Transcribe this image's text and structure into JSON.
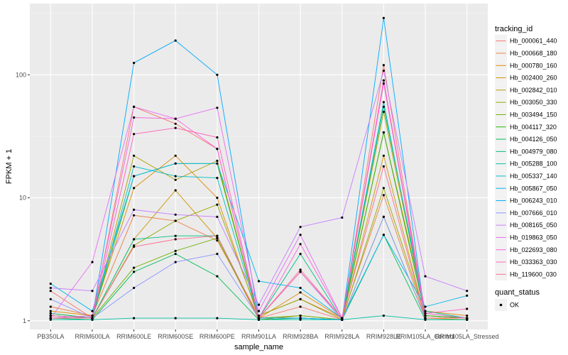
{
  "chart_data": {
    "type": "line",
    "title": "",
    "xlabel": "sample_name",
    "ylabel": "FPKM + 1",
    "y_scale": "log10",
    "ylim": [
      0.85,
      380
    ],
    "y_ticks": [
      1,
      10,
      100
    ],
    "y_tick_labels": [
      "1",
      "10",
      "100"
    ],
    "grid": true,
    "legend_position": "right",
    "categories": [
      "PB350LA",
      "RRIM600LA",
      "RRIM600LE",
      "RRIM600SE",
      "RRIM600PE",
      "RRIM901LA",
      "RRIM928BA",
      "RRIM928LA",
      "RRIM928LE",
      "RRIM105LA_Control",
      "RRIM105LA_Stressed"
    ],
    "legend_color_title": "tracking_id",
    "legend_shape_title": "quant_status",
    "legend_shape_label": "OK",
    "point_color": "#000000",
    "series": [
      {
        "name": "Hb_000061_440",
        "color": "#F8766D",
        "values": [
          1.75,
          1.05,
          55,
          40,
          25,
          1.05,
          1.3,
          1.02,
          120,
          1.1,
          1.05
        ]
      },
      {
        "name": "Hb_000668_180",
        "color": "#EE8043",
        "values": [
          1.3,
          1.1,
          7.2,
          6.5,
          4.5,
          1.1,
          1.5,
          1.05,
          10.5,
          1.05,
          1.05
        ]
      },
      {
        "name": "Hb_000780_160",
        "color": "#E18A00",
        "values": [
          1.2,
          1.1,
          12,
          22,
          10,
          1.05,
          1.7,
          1.05,
          34,
          1.2,
          1.1
        ]
      },
      {
        "name": "Hb_002400_260",
        "color": "#CD9600",
        "values": [
          1.05,
          1.05,
          4.6,
          11.5,
          4.7,
          1.02,
          1.1,
          1.02,
          22,
          1.05,
          1.02
        ]
      },
      {
        "name": "Hb_002842_010",
        "color": "#B59F00",
        "values": [
          1.15,
          1.05,
          22,
          14,
          20,
          1.05,
          1.05,
          1.02,
          50,
          1.15,
          1.05
        ]
      },
      {
        "name": "Hb_003050_330",
        "color": "#97A900",
        "values": [
          1.1,
          1.05,
          4.1,
          6.5,
          8.8,
          1.1,
          1.5,
          1.02,
          12,
          1.1,
          1.05
        ]
      },
      {
        "name": "Hb_003494_150",
        "color": "#6FB000",
        "values": [
          1.1,
          1.05,
          2.7,
          3.7,
          4.7,
          1.05,
          1.1,
          1.02,
          7,
          1.05,
          1.05
        ]
      },
      {
        "name": "Hb_004117_320",
        "color": "#24B700",
        "values": [
          1.1,
          1.05,
          15,
          19,
          19,
          1.05,
          1.05,
          1.02,
          34,
          1.1,
          1.05
        ]
      },
      {
        "name": "Hb_004126_050",
        "color": "#00BC57",
        "values": [
          1.05,
          1.02,
          2.5,
          3.5,
          2.3,
          1.02,
          1.05,
          1.02,
          5,
          1.02,
          1.02
        ]
      },
      {
        "name": "Hb_004979_080",
        "color": "#00BF82",
        "values": [
          1.15,
          1.05,
          4.6,
          4.9,
          4.9,
          1.05,
          3.5,
          1.02,
          55,
          1.2,
          1.05
        ]
      },
      {
        "name": "Hb_005288_100",
        "color": "#00C1A5",
        "values": [
          1.02,
          1.02,
          1.05,
          1.05,
          1.05,
          1.02,
          1.02,
          1.02,
          1.1,
          1.02,
          1.02
        ]
      },
      {
        "name": "Hb_005337_140",
        "color": "#00BFC4",
        "values": [
          1.05,
          1.05,
          18,
          15,
          14.5,
          1.05,
          1.05,
          1.02,
          60,
          1.05,
          1.05
        ]
      },
      {
        "name": "Hb_005867_050",
        "color": "#00B6EB",
        "values": [
          2,
          1.2,
          15,
          19,
          19,
          2.1,
          1.85,
          1.05,
          5,
          1.3,
          1.6
        ]
      },
      {
        "name": "Hb_006243_010",
        "color": "#00A9FF",
        "values": [
          1.05,
          1.05,
          125,
          190,
          100,
          1.05,
          1.05,
          1.02,
          290,
          1.05,
          1.05
        ]
      },
      {
        "name": "Hb_007666_010",
        "color": "#8B93FF",
        "values": [
          1.5,
          1.05,
          1.85,
          3,
          3.5,
          1.05,
          2.5,
          1.02,
          7,
          1.05,
          1.05
        ]
      },
      {
        "name": "Hb_008165_050",
        "color": "#C77CFF",
        "values": [
          1.85,
          1.75,
          8,
          7.3,
          7,
          1.35,
          5.8,
          6.9,
          108,
          2.3,
          1.75
        ]
      },
      {
        "name": "Hb_019863_050",
        "color": "#E76BF3",
        "values": [
          1.05,
          3,
          55,
          44,
          54,
          1.2,
          5,
          1.05,
          90,
          1.15,
          1.05
        ]
      },
      {
        "name": "Hb_022693_080",
        "color": "#FA62DB",
        "values": [
          1.05,
          1.1,
          45,
          44,
          25,
          1.05,
          4.2,
          1.05,
          90,
          1.05,
          1.05
        ]
      },
      {
        "name": "Hb_033363_030",
        "color": "#FF62BC",
        "values": [
          1.1,
          1.05,
          33,
          37,
          31,
          1.05,
          2.5,
          1.05,
          85,
          1.15,
          1.25
        ]
      },
      {
        "name": "Hb_119600_030",
        "color": "#FF6C91",
        "values": [
          1.05,
          1.05,
          4,
          4.6,
          4.9,
          1.05,
          2.6,
          1.05,
          18,
          1.05,
          1.05
        ]
      }
    ]
  }
}
